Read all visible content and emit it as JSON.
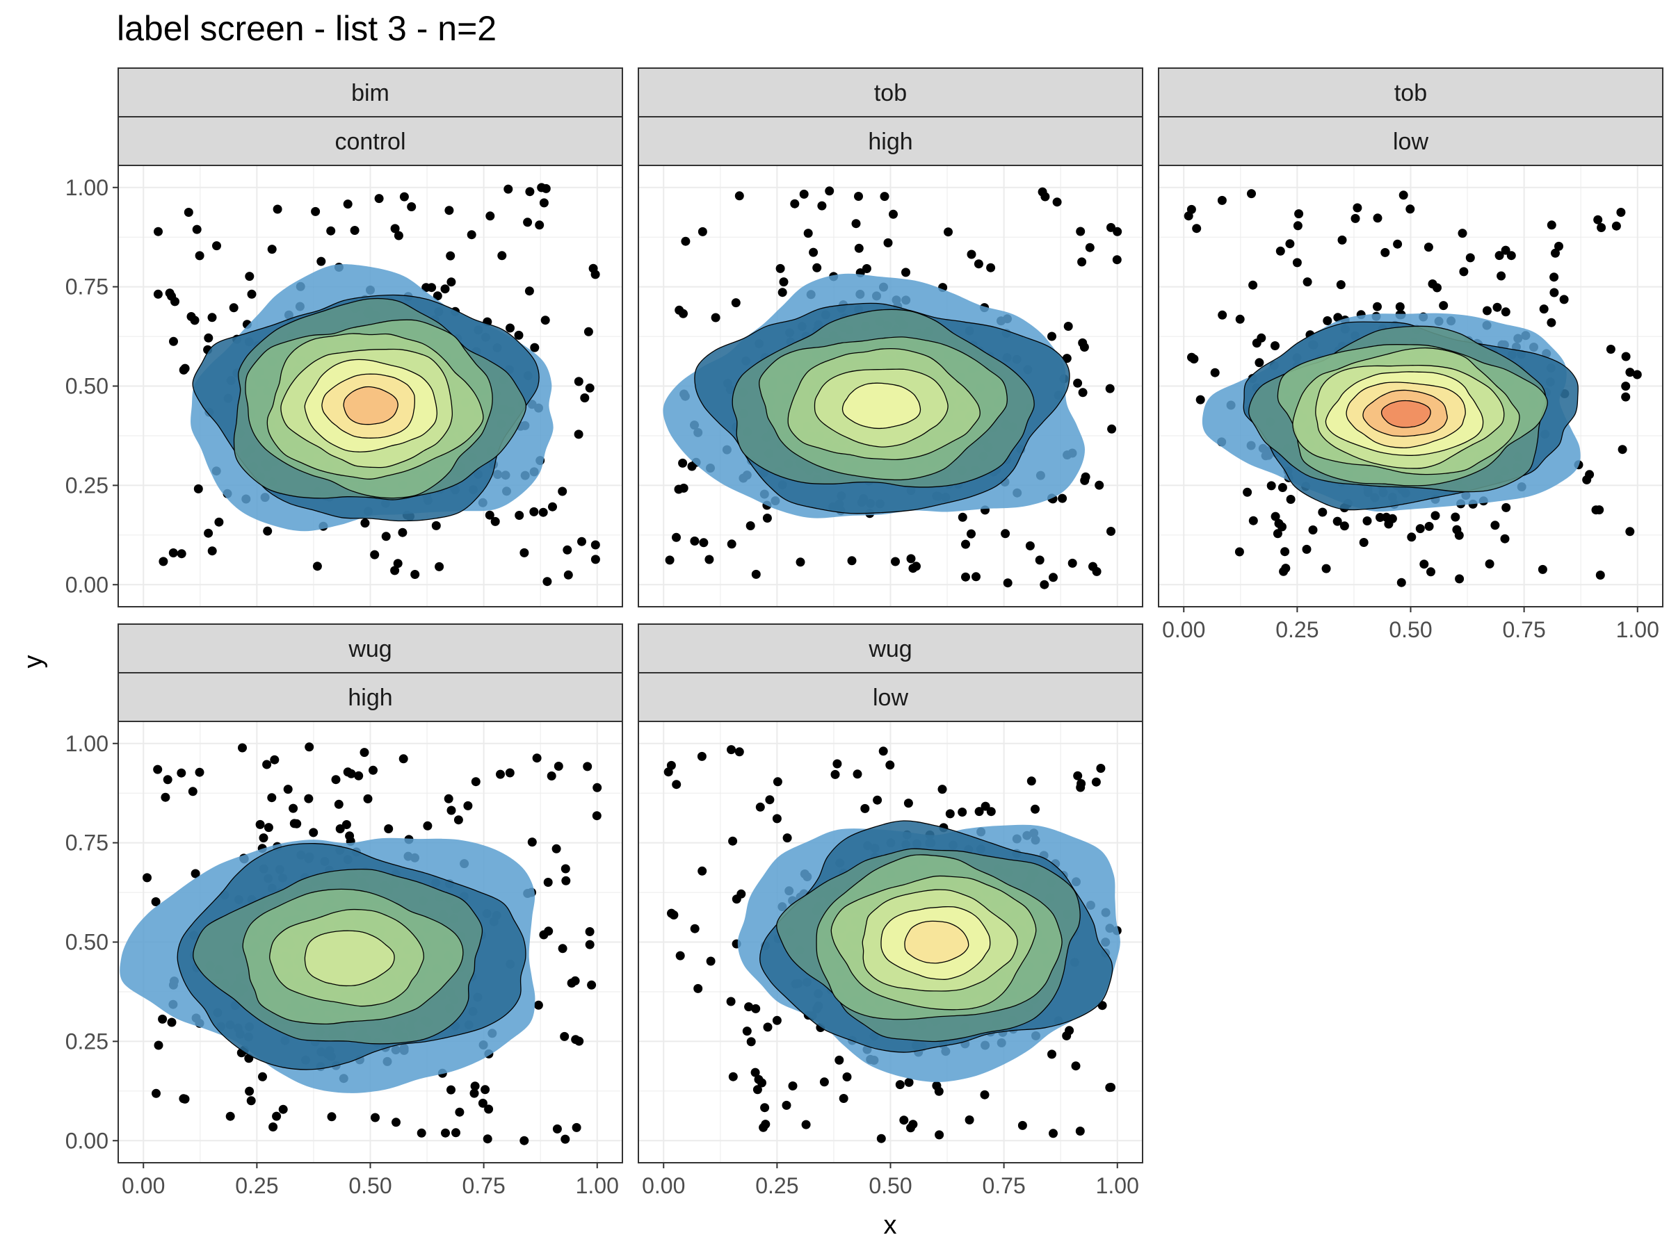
{
  "chart_data": {
    "type": "scatter",
    "title": "label screen - list 3 - n=2",
    "xlabel": "x",
    "ylabel": "y",
    "xlim": [
      0,
      1
    ],
    "ylim": [
      0,
      1
    ],
    "x_ticks": [
      "0.00",
      "0.25",
      "0.50",
      "0.75",
      "1.00"
    ],
    "y_ticks": [
      "0.00",
      "0.25",
      "0.50",
      "0.75",
      "1.00"
    ],
    "grid": true,
    "overlay": "2D density contours (filled, blue to green to yellow to red)",
    "panels": [
      {
        "strip_top": "bim",
        "strip_bottom": "control",
        "peak": {
          "x": 0.5,
          "y": 0.45
        }
      },
      {
        "strip_top": "tob",
        "strip_bottom": "high",
        "peak": {
          "x": 0.48,
          "y": 0.45
        }
      },
      {
        "strip_top": "tob",
        "strip_bottom": "low",
        "peak": {
          "x": 0.49,
          "y": 0.43
        }
      },
      {
        "strip_top": "wug",
        "strip_bottom": "high",
        "peak": {
          "x": 0.45,
          "y": 0.46
        }
      },
      {
        "strip_top": "wug",
        "strip_bottom": "low",
        "peak": {
          "x": 0.6,
          "y": 0.5
        }
      }
    ]
  }
}
